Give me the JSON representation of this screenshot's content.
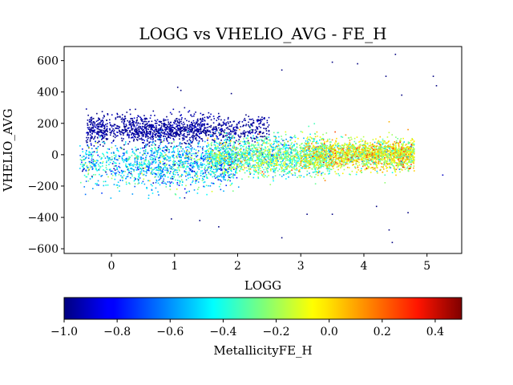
{
  "chart_data": {
    "type": "scatter",
    "title": "LOGG vs VHELIO_AVG - FE_H",
    "xlabel": "LOGG",
    "ylabel": "VHELIO_AVG",
    "xlim": [
      -0.75,
      5.55
    ],
    "ylim": [
      -630,
      690
    ],
    "xticks": [
      "0",
      "1",
      "2",
      "3",
      "4",
      "5"
    ],
    "xtick_values": [
      0,
      1,
      2,
      3,
      4,
      5
    ],
    "yticks": [
      "600",
      "400",
      "200",
      "0",
      "−200",
      "−400",
      "−600"
    ],
    "ytick_values": [
      600,
      400,
      200,
      0,
      -200,
      -400,
      -600
    ],
    "colorbar": {
      "label": "MetallicityFE_H",
      "range": [
        -1.0,
        0.5
      ],
      "colormap": "jet",
      "ticks": [
        "−1.0",
        "−0.8",
        "−0.6",
        "−0.4",
        "−0.2",
        "0.0",
        "0.2",
        "0.4"
      ],
      "tick_values": [
        -1.0,
        -0.8,
        -0.6,
        -0.4,
        -0.2,
        0.0,
        0.2,
        0.4
      ]
    },
    "grid": false,
    "components": [
      {
        "logg_range": [
          -0.4,
          2.5
        ],
        "logg_center": 0.9,
        "vhelio_center": 160,
        "vhelio_spread": 45,
        "fe_h": -0.95,
        "count": 1400
      },
      {
        "logg_range": [
          -0.5,
          2.0
        ],
        "logg_center": 0.9,
        "vhelio_center": -60,
        "vhelio_spread": 70,
        "fe_h": -0.5,
        "count": 1500
      },
      {
        "logg_range": [
          1.5,
          3.5
        ],
        "logg_center": 2.6,
        "vhelio_center": -10,
        "vhelio_spread": 60,
        "fe_h": -0.3,
        "count": 1800
      },
      {
        "logg_range": [
          3.0,
          4.8
        ],
        "logg_center": 4.1,
        "vhelio_center": 0,
        "vhelio_spread": 45,
        "fe_h": -0.1,
        "count": 2000
      }
    ],
    "outliers": [
      {
        "x": 2.7,
        "y": 540,
        "fe_h": -1.0
      },
      {
        "x": 3.5,
        "y": 590,
        "fe_h": -1.0
      },
      {
        "x": 3.9,
        "y": 580,
        "fe_h": -1.0
      },
      {
        "x": 4.5,
        "y": 640,
        "fe_h": -1.0
      },
      {
        "x": 4.35,
        "y": 500,
        "fe_h": -1.0
      },
      {
        "x": 5.1,
        "y": 500,
        "fe_h": -1.0
      },
      {
        "x": 5.15,
        "y": 440,
        "fe_h": -1.0
      },
      {
        "x": 4.6,
        "y": 380,
        "fe_h": -1.0
      },
      {
        "x": 1.05,
        "y": 430,
        "fe_h": -1.0
      },
      {
        "x": 1.1,
        "y": 410,
        "fe_h": -1.0
      },
      {
        "x": 1.9,
        "y": 390,
        "fe_h": -1.0
      },
      {
        "x": 2.7,
        "y": -530,
        "fe_h": -1.0
      },
      {
        "x": 4.4,
        "y": -480,
        "fe_h": -1.0
      },
      {
        "x": 4.45,
        "y": -560,
        "fe_h": -1.0
      },
      {
        "x": 1.7,
        "y": -460,
        "fe_h": -1.0
      },
      {
        "x": 0.95,
        "y": -410,
        "fe_h": -1.0
      },
      {
        "x": 1.4,
        "y": -420,
        "fe_h": -1.0
      },
      {
        "x": 4.7,
        "y": -370,
        "fe_h": -1.0
      },
      {
        "x": 3.1,
        "y": -380,
        "fe_h": -1.0
      },
      {
        "x": 3.5,
        "y": -380,
        "fe_h": -1.0
      },
      {
        "x": 4.2,
        "y": -330,
        "fe_h": -1.0
      },
      {
        "x": 4.4,
        "y": 210,
        "fe_h": 0.05
      },
      {
        "x": 4.7,
        "y": 160,
        "fe_h": 0.1
      },
      {
        "x": 5.25,
        "y": -130,
        "fe_h": -0.9
      }
    ]
  }
}
